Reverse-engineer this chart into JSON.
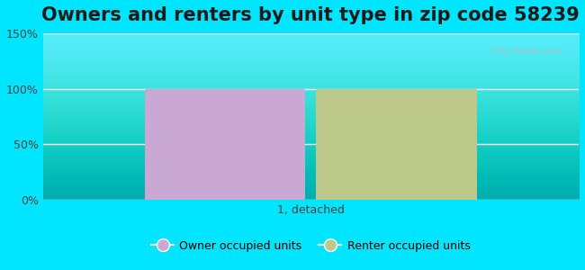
{
  "title": "Owners and renters by unit type in zip code 58239",
  "categories": [
    "1, detached"
  ],
  "owner_values": [
    100
  ],
  "renter_values": [
    100
  ],
  "owner_color": "#c9a8d4",
  "renter_color": "#bcc98a",
  "ylim": [
    0,
    150
  ],
  "yticks": [
    0,
    50,
    100,
    150
  ],
  "ytick_labels": [
    "0%",
    "50%",
    "100%",
    "150%"
  ],
  "background_outer": "#00e5ff",
  "title_fontsize": 15,
  "bar_width": 0.3,
  "legend_labels": [
    "Owner occupied units",
    "Renter occupied units"
  ],
  "watermark": "City-Data.com"
}
